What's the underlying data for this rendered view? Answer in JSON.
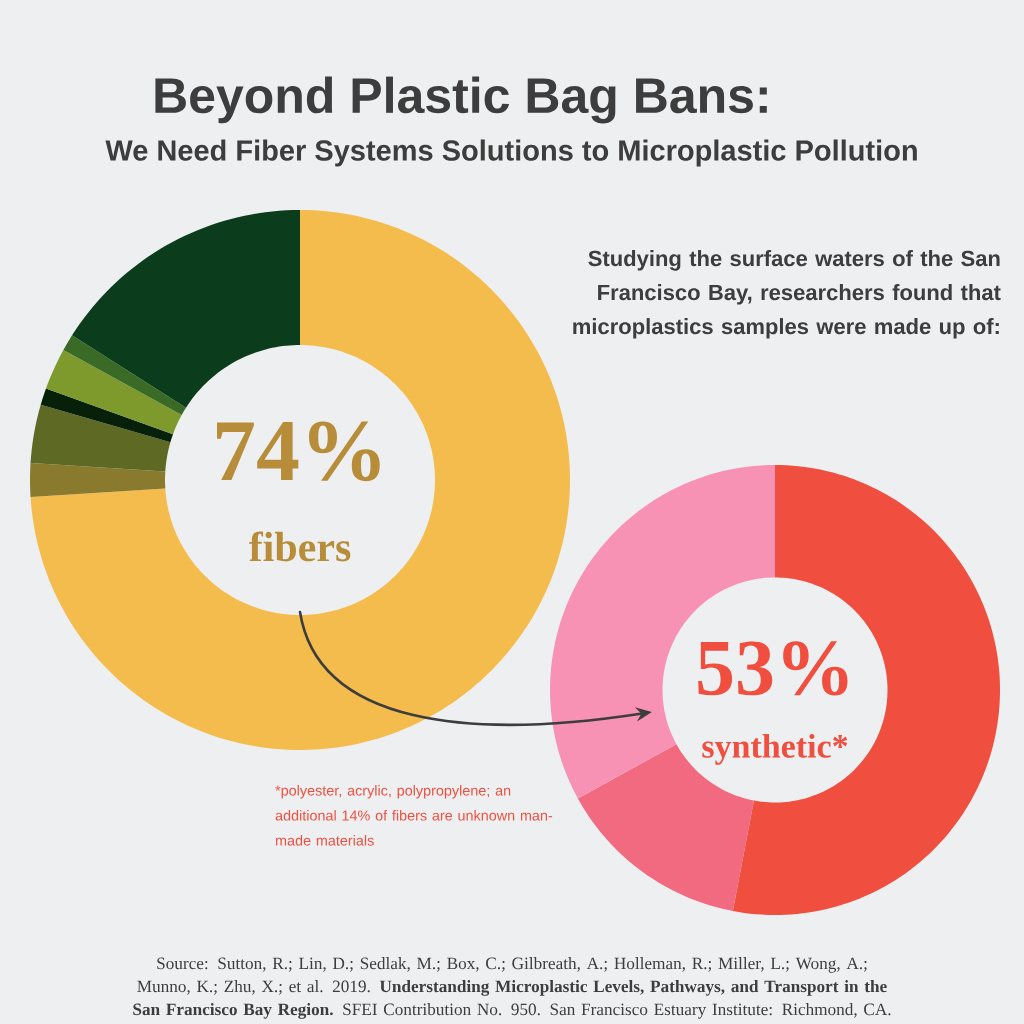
{
  "chart_data": [
    {
      "type": "donut",
      "title": "Beyond Plastic Bag Bans:",
      "subtitle": "We Need Fiber Systems Solutions to Microplastic Pollution",
      "categories": [
        null,
        null,
        null,
        null,
        null,
        null,
        null
      ],
      "values": [
        74,
        2,
        3.5,
        1,
        2.5,
        1,
        16
      ],
      "colors": [
        "#f4bc4c",
        "#8a7a2e",
        "#5e6a24",
        "#06200a",
        "#7f9a2c",
        "#3a6b26",
        "#0b3d1c"
      ],
      "annotations": [
        "74%",
        "fibers"
      ]
    },
    {
      "type": "donut",
      "categories": [
        null,
        null,
        null
      ],
      "values": [
        53,
        14,
        33
      ],
      "colors": [
        "#f04e3e",
        "#f26a80",
        "#f792b5"
      ],
      "annotations": [
        "53%",
        "synthetic*",
        "Studying the surface waters of the San Francisco Bay, researchers found that microplastics samples were made up of:",
        "*polyester, acrylic, polypropylene; an additional 14% of fibers are unknown man-made materials",
        "Source: Sutton, R.; Lin, D.; Sedlak, M.; Box, C.; Gilbreath, A.; Holleman, R.; Miller, L.; Wong, A.; Munno, K.; Zhu, X.; et al. 2019. **Understanding Microplastic Levels, Pathways, and Transport in the San Francisco Bay Region.** SFEI Contribution No. 950. San Francisco Estuary Institute: Richmond, CA."
      ]
    }
  ]
}
